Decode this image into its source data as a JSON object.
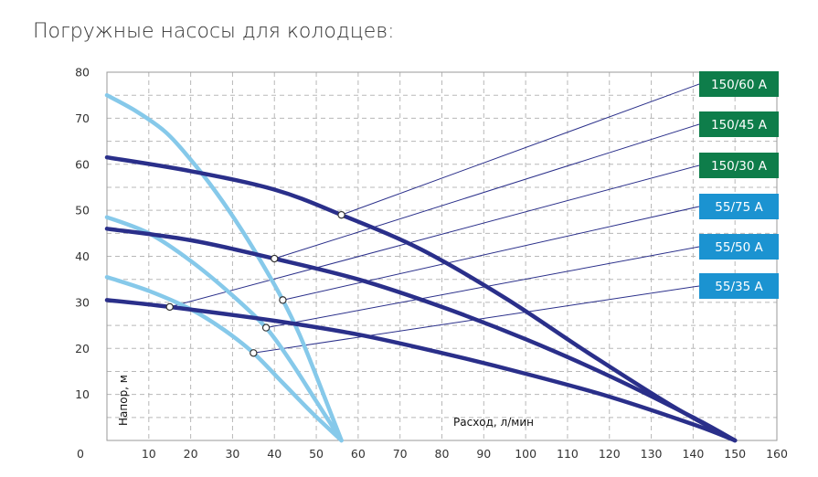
{
  "page": {
    "title": "Погружные насосы для колодцев:"
  },
  "chart_data": {
    "type": "line",
    "xlabel": "Расход, л/мин",
    "ylabel": "Напор, м",
    "xlim": [
      0,
      160
    ],
    "ylim": [
      0,
      80
    ],
    "x_ticks": [
      0,
      10,
      20,
      30,
      40,
      50,
      60,
      70,
      80,
      90,
      100,
      110,
      120,
      130,
      140,
      150,
      160
    ],
    "y_ticks": [
      10,
      20,
      30,
      40,
      50,
      60,
      70,
      80
    ],
    "grid": true,
    "legend_placement": "right",
    "series": [
      {
        "name": "150/60 А",
        "color": "#2a2f8a",
        "label_bg": "#0e7d4a",
        "x": [
          0,
          20,
          40,
          56,
          75,
          95,
          115,
          135,
          150
        ],
        "y": [
          61.5,
          58.5,
          54.5,
          49,
          41.5,
          31,
          19,
          7.5,
          0
        ],
        "marker": [
          56,
          49
        ]
      },
      {
        "name": "150/45 А",
        "color": "#2a2f8a",
        "label_bg": "#0e7d4a",
        "x": [
          0,
          20,
          40,
          60,
          80,
          100,
          120,
          140,
          150
        ],
        "y": [
          46,
          43.5,
          39.5,
          35,
          29,
          22,
          14,
          5,
          0
        ],
        "marker": [
          40,
          39.5
        ]
      },
      {
        "name": "150/30 А",
        "color": "#2a2f8a",
        "label_bg": "#0e7d4a",
        "x": [
          0,
          15,
          40,
          60,
          80,
          100,
          120,
          140,
          150
        ],
        "y": [
          30.5,
          29,
          26,
          23,
          19,
          14.5,
          9.5,
          3.5,
          0
        ],
        "marker": [
          15,
          29
        ]
      },
      {
        "name": "55/75 А",
        "color": "#86c9ea",
        "label_bg": "#1b93d1",
        "x": [
          0,
          7,
          14,
          20,
          26,
          32,
          38,
          42,
          46,
          50,
          53,
          56
        ],
        "y": [
          75,
          71.5,
          67,
          61,
          54,
          46,
          37,
          30.5,
          23,
          14,
          7,
          0
        ],
        "marker": [
          42,
          30.5
        ]
      },
      {
        "name": "55/50 А",
        "color": "#86c9ea",
        "label_bg": "#1b93d1",
        "x": [
          0,
          10,
          20,
          30,
          38,
          44,
          50,
          56
        ],
        "y": [
          48.5,
          45,
          39,
          31.5,
          24.5,
          17,
          8.5,
          0
        ],
        "marker": [
          38,
          24.5
        ]
      },
      {
        "name": "55/35 А",
        "color": "#86c9ea",
        "label_bg": "#1b93d1",
        "x": [
          0,
          10,
          20,
          28,
          35,
          42,
          49,
          56
        ],
        "y": [
          35.5,
          32.5,
          28.5,
          24,
          19,
          12.5,
          6,
          0
        ],
        "marker": [
          35,
          19
        ]
      }
    ]
  }
}
